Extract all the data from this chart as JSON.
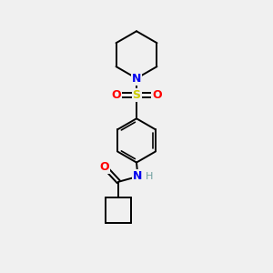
{
  "bg_color": "#f0f0f0",
  "atom_colors": {
    "C": "#000000",
    "N": "#0000ee",
    "O": "#ff0000",
    "S": "#cccc00",
    "H": "#70a0a0"
  },
  "bond_color": "#000000",
  "line_width": 1.4,
  "fig_size": [
    3.0,
    3.0
  ],
  "dpi": 100
}
